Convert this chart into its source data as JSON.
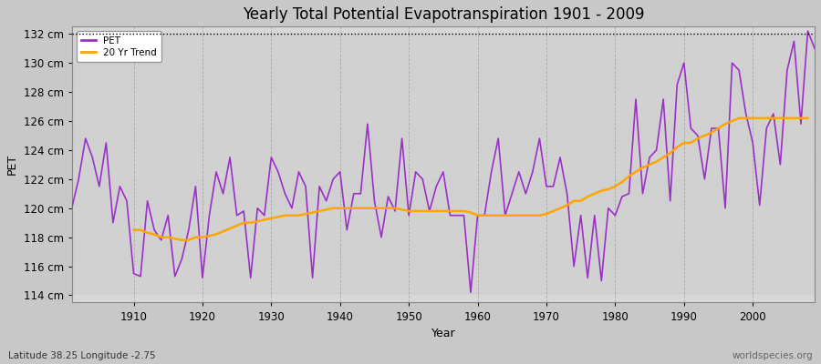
{
  "title": "Yearly Total Potential Evapotranspiration 1901 - 2009",
  "xlabel": "Year",
  "ylabel": "PET",
  "subtitle": "Latitude 38.25 Longitude -2.75",
  "watermark": "worldspecies.org",
  "pet_color": "#9B30C8",
  "trend_color": "#FFA500",
  "fig_bg_color": "#C8C8C8",
  "plot_bg_color": "#D8D8D8",
  "ylim": [
    113.5,
    132.5
  ],
  "yticks": [
    114,
    116,
    118,
    120,
    122,
    124,
    126,
    128,
    130,
    132
  ],
  "ytick_labels": [
    "114 cm",
    "116 cm",
    "118 cm",
    "120 cm",
    "122 cm",
    "124 cm",
    "126 cm",
    "128 cm",
    "130 cm",
    "132 cm"
  ],
  "years": [
    1901,
    1902,
    1903,
    1904,
    1905,
    1906,
    1907,
    1908,
    1909,
    1910,
    1911,
    1912,
    1913,
    1914,
    1915,
    1916,
    1917,
    1918,
    1919,
    1920,
    1921,
    1922,
    1923,
    1924,
    1925,
    1926,
    1927,
    1928,
    1929,
    1930,
    1931,
    1932,
    1933,
    1934,
    1935,
    1936,
    1937,
    1938,
    1939,
    1940,
    1941,
    1942,
    1943,
    1944,
    1945,
    1946,
    1947,
    1948,
    1949,
    1950,
    1951,
    1952,
    1953,
    1954,
    1955,
    1956,
    1957,
    1958,
    1959,
    1960,
    1961,
    1962,
    1963,
    1964,
    1965,
    1966,
    1967,
    1968,
    1969,
    1970,
    1971,
    1972,
    1973,
    1974,
    1975,
    1976,
    1977,
    1978,
    1979,
    1980,
    1981,
    1982,
    1983,
    1984,
    1985,
    1986,
    1987,
    1988,
    1989,
    1990,
    1991,
    1992,
    1993,
    1994,
    1995,
    1996,
    1997,
    1998,
    1999,
    2000,
    2001,
    2002,
    2003,
    2004,
    2005,
    2006,
    2007,
    2008,
    2009
  ],
  "pet_values": [
    120.0,
    122.0,
    124.8,
    123.5,
    121.5,
    124.5,
    119.0,
    121.5,
    120.5,
    115.5,
    115.3,
    120.5,
    118.5,
    117.8,
    119.5,
    115.3,
    116.5,
    118.5,
    121.5,
    115.2,
    119.5,
    122.5,
    121.0,
    123.5,
    119.5,
    119.8,
    115.2,
    120.0,
    119.5,
    123.5,
    122.5,
    121.0,
    120.0,
    122.5,
    121.5,
    115.2,
    121.5,
    120.5,
    122.0,
    122.5,
    118.5,
    121.0,
    121.0,
    125.8,
    120.5,
    118.0,
    120.8,
    119.8,
    124.8,
    119.5,
    122.5,
    122.0,
    119.8,
    121.5,
    122.5,
    119.5,
    119.5,
    119.5,
    114.2,
    119.5,
    119.5,
    122.5,
    124.8,
    119.5,
    121.0,
    122.5,
    121.0,
    122.5,
    124.8,
    121.5,
    121.5,
    123.5,
    121.0,
    116.0,
    119.5,
    115.2,
    119.5,
    115.0,
    120.0,
    119.5,
    120.8,
    121.0,
    127.5,
    121.0,
    123.5,
    124.0,
    127.5,
    120.5,
    128.5,
    130.0,
    125.5,
    125.0,
    122.0,
    125.5,
    125.5,
    120.0,
    130.0,
    129.5,
    126.5,
    124.5,
    120.2,
    125.5,
    126.5,
    123.0,
    129.5,
    131.5,
    125.8,
    132.2,
    131.0
  ],
  "trend_values": [
    null,
    null,
    null,
    null,
    null,
    null,
    null,
    null,
    null,
    118.5,
    118.5,
    118.3,
    118.2,
    118.0,
    118.0,
    117.9,
    117.8,
    117.8,
    118.0,
    118.0,
    118.1,
    118.2,
    118.4,
    118.6,
    118.8,
    119.0,
    119.0,
    119.1,
    119.2,
    119.3,
    119.4,
    119.5,
    119.5,
    119.5,
    119.6,
    119.7,
    119.8,
    119.9,
    120.0,
    120.0,
    120.0,
    120.0,
    120.0,
    120.0,
    120.0,
    120.0,
    120.0,
    120.0,
    119.9,
    119.8,
    119.8,
    119.8,
    119.8,
    119.8,
    119.8,
    119.8,
    119.8,
    119.8,
    119.7,
    119.5,
    119.5,
    119.5,
    119.5,
    119.5,
    119.5,
    119.5,
    119.5,
    119.5,
    119.5,
    119.6,
    119.8,
    120.0,
    120.2,
    120.5,
    120.5,
    120.8,
    121.0,
    121.2,
    121.3,
    121.5,
    121.8,
    122.2,
    122.5,
    122.8,
    123.0,
    123.2,
    123.5,
    123.8,
    124.2,
    124.5,
    124.5,
    124.8,
    125.0,
    125.2,
    125.5,
    125.8,
    126.0,
    126.2,
    126.2,
    126.2,
    126.2,
    126.2,
    126.2,
    126.2,
    126.2,
    126.2,
    126.2,
    126.2
  ]
}
